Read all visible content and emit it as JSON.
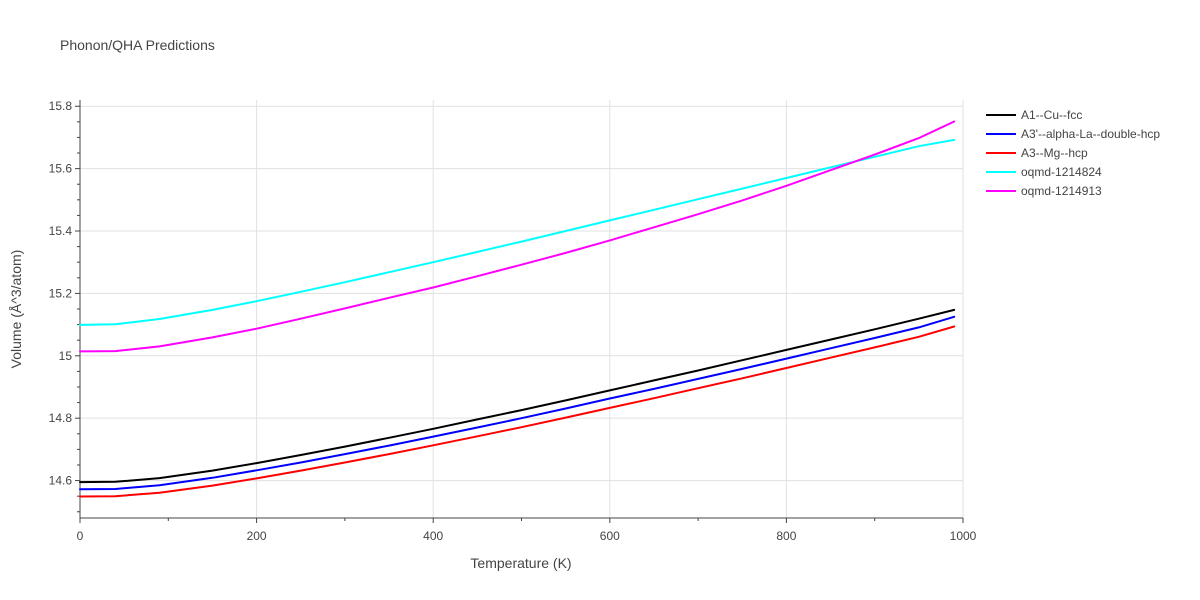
{
  "chart_data": {
    "type": "line",
    "title": "Phonon/QHA Predictions",
    "xlabel": "Temperature (K)",
    "ylabel": "Volume (Å^3/atom)",
    "xlim": [
      0,
      1000
    ],
    "ylim": [
      14.48,
      15.82
    ],
    "x_ticks": [
      0,
      200,
      400,
      600,
      800,
      1000
    ],
    "x_tick_labels": [
      "0",
      "200",
      "400",
      "600",
      "800",
      "1000"
    ],
    "y_ticks": [
      14.6,
      14.8,
      15.0,
      15.2,
      15.4,
      15.6,
      15.8
    ],
    "y_tick_labels": [
      "14.6",
      "14.8",
      "15",
      "15.2",
      "15.4",
      "15.6",
      "15.8"
    ],
    "grid": true,
    "legend_position": "top-right, outside plot",
    "x": [
      0,
      40,
      90,
      150,
      200,
      250,
      300,
      350,
      400,
      450,
      500,
      550,
      600,
      650,
      700,
      750,
      800,
      850,
      900,
      950,
      990
    ],
    "series": [
      {
        "name": "A1--Cu--fcc",
        "color": "#000000",
        "values": [
          14.595,
          14.596,
          14.608,
          14.632,
          14.656,
          14.682,
          14.709,
          14.737,
          14.766,
          14.796,
          14.826,
          14.857,
          14.889,
          14.921,
          14.953,
          14.986,
          15.019,
          15.052,
          15.085,
          15.119,
          15.147
        ]
      },
      {
        "name": "A3'--alpha-La--double-hcp",
        "color": "#0000ff",
        "values": [
          14.572,
          14.573,
          14.585,
          14.609,
          14.633,
          14.658,
          14.685,
          14.712,
          14.741,
          14.77,
          14.8,
          14.831,
          14.863,
          14.894,
          14.926,
          14.958,
          14.991,
          15.024,
          15.057,
          15.091,
          15.125
        ]
      },
      {
        "name": "A3--Mg--hcp",
        "color": "#ff0000",
        "values": [
          14.549,
          14.55,
          14.561,
          14.584,
          14.607,
          14.632,
          14.658,
          14.685,
          14.713,
          14.742,
          14.771,
          14.802,
          14.833,
          14.864,
          14.896,
          14.928,
          14.961,
          14.994,
          15.027,
          15.061,
          15.094
        ]
      },
      {
        "name": "oqmd-1214824",
        "color": "#00ffff",
        "values": [
          15.099,
          15.101,
          15.118,
          15.147,
          15.175,
          15.205,
          15.236,
          15.268,
          15.3,
          15.333,
          15.366,
          15.4,
          15.434,
          15.468,
          15.502,
          15.536,
          15.57,
          15.604,
          15.638,
          15.672,
          15.692
        ]
      },
      {
        "name": "oqmd-1214913",
        "color": "#ff00ff",
        "values": [
          15.014,
          15.015,
          15.03,
          15.059,
          15.087,
          15.119,
          15.152,
          15.186,
          15.219,
          15.255,
          15.292,
          15.33,
          15.37,
          15.412,
          15.454,
          15.498,
          15.545,
          15.595,
          15.645,
          15.698,
          15.751
        ]
      }
    ]
  }
}
